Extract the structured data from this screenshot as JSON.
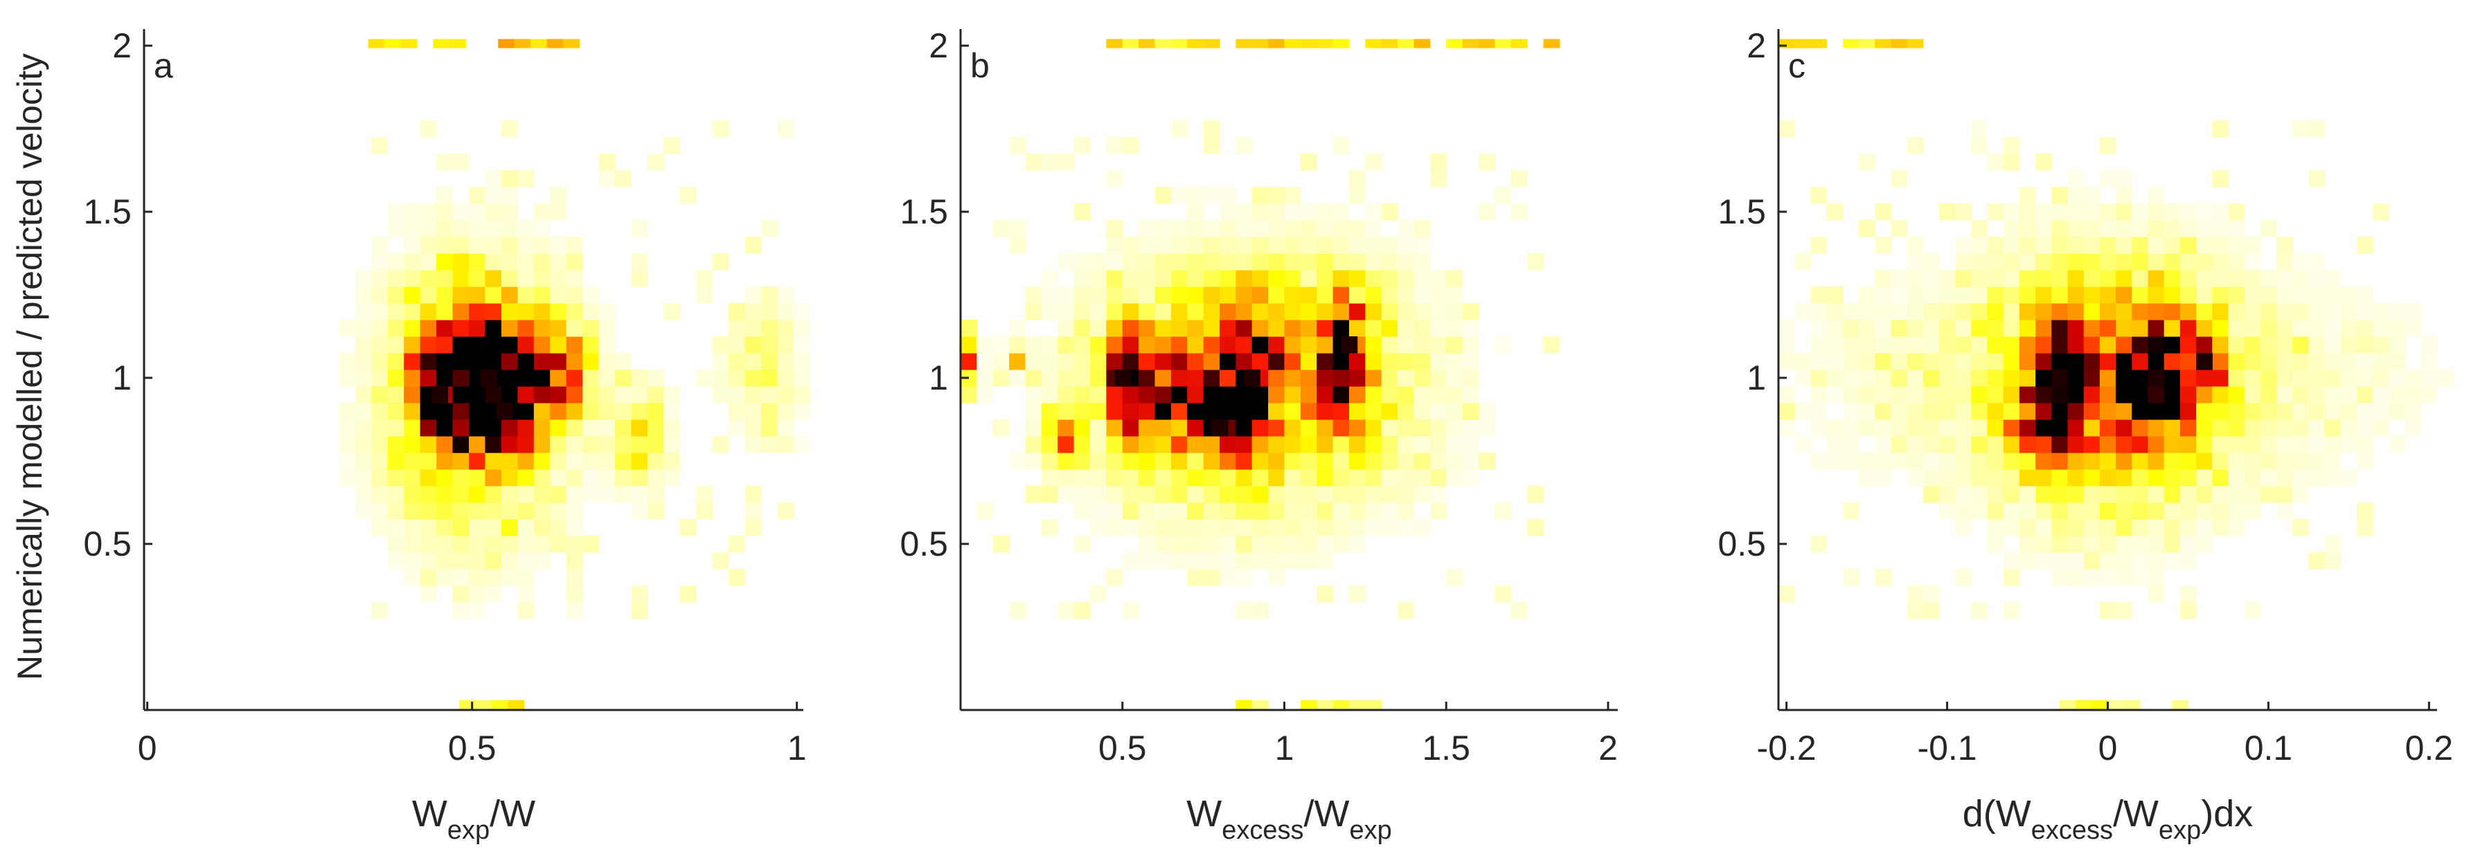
{
  "figure": {
    "ylabel": "Numerically modelled / predicted velocity",
    "colormap": [
      "#ffffff",
      "#ffff9c",
      "#ffff00",
      "#ffc000",
      "#ff8000",
      "#ff2000",
      "#cc0000",
      "#800000",
      "#000000"
    ]
  },
  "chart_data": [
    {
      "type": "heatmap",
      "letter": "a",
      "xlabel": "W",
      "xlabel_sub": "exp",
      "xlabel_suffix": "/W",
      "xlim": [
        -0.005,
        1.01
      ],
      "ylim": [
        0,
        2.05
      ],
      "xticks": [
        0,
        0.5,
        1
      ],
      "xtick_labels": [
        "0",
        "0.5",
        "1"
      ],
      "yticks": [
        0.5,
        1,
        1.5,
        2
      ],
      "ytick_labels": [
        "0.5",
        "1",
        "1.5",
        "2"
      ],
      "bin_width": [
        0.025,
        0.05
      ],
      "blobs": [
        {
          "x": 0.46,
          "y": 0.96,
          "sx": 0.035,
          "sy": 0.12,
          "a": 1.0
        },
        {
          "x": 0.52,
          "y": 1.02,
          "sx": 0.03,
          "sy": 0.13,
          "a": 0.95
        },
        {
          "x": 0.56,
          "y": 0.9,
          "sx": 0.03,
          "sy": 0.08,
          "a": 0.7
        },
        {
          "x": 0.62,
          "y": 1.02,
          "sx": 0.04,
          "sy": 0.1,
          "a": 0.6
        },
        {
          "x": 0.5,
          "y": 0.95,
          "sx": 0.09,
          "sy": 0.28,
          "a": 0.35
        },
        {
          "x": 0.76,
          "y": 0.82,
          "sx": 0.03,
          "sy": 0.1,
          "a": 0.25
        },
        {
          "x": 0.95,
          "y": 1.02,
          "sx": 0.04,
          "sy": 0.15,
          "a": 0.15
        }
      ],
      "edge_bands": [
        {
          "y": 2.0,
          "x0": 0.34,
          "x1": 0.66,
          "a": 0.35
        },
        {
          "y": 0.0,
          "x0": 0.43,
          "x1": 0.57,
          "a": 0.25
        }
      ],
      "noise_extent": [
        0.34,
        1.0
      ],
      "peaks": [
        {
          "x": 0.45,
          "y": 0.95
        },
        {
          "x": 0.525,
          "y": 1.0
        },
        {
          "x": 0.55,
          "y": 0.9
        }
      ]
    },
    {
      "type": "heatmap",
      "letter": "b",
      "xlabel": "W",
      "xlabel_sub": "excess",
      "xlabel_suffix": "/W",
      "xlabel_sub2": "exp",
      "xlim": [
        0,
        2.03
      ],
      "ylim": [
        0,
        2.05
      ],
      "xticks": [
        0.5,
        1,
        1.5,
        2
      ],
      "xtick_labels": [
        "0.5",
        "1",
        "1.5",
        "2"
      ],
      "yticks": [
        0.5,
        1,
        1.5,
        2
      ],
      "ytick_labels": [
        "0.5",
        "1",
        "1.5",
        "2"
      ],
      "bin_width": [
        0.05,
        0.05
      ],
      "blobs": [
        {
          "x": 0.52,
          "y": 1.0,
          "sx": 0.04,
          "sy": 0.1,
          "a": 0.9
        },
        {
          "x": 0.9,
          "y": 1.0,
          "sx": 0.05,
          "sy": 0.13,
          "a": 0.95
        },
        {
          "x": 0.8,
          "y": 0.9,
          "sx": 0.05,
          "sy": 0.08,
          "a": 0.7
        },
        {
          "x": 1.18,
          "y": 1.05,
          "sx": 0.06,
          "sy": 0.13,
          "a": 0.75
        },
        {
          "x": 0.65,
          "y": 0.95,
          "sx": 0.07,
          "sy": 0.1,
          "a": 0.55
        },
        {
          "x": 0.32,
          "y": 0.83,
          "sx": 0.04,
          "sy": 0.06,
          "a": 0.45
        },
        {
          "x": 0.9,
          "y": 0.98,
          "sx": 0.32,
          "sy": 0.25,
          "a": 0.38
        },
        {
          "x": 0.16,
          "y": 1.05,
          "sx": 0.015,
          "sy": 0.02,
          "a": 0.55
        },
        {
          "x": 0.03,
          "y": 1.05,
          "sx": 0.02,
          "sy": 0.06,
          "a": 0.45
        }
      ],
      "edge_bands": [
        {
          "y": 2.0,
          "x0": 0.45,
          "x1": 1.85,
          "a": 0.3
        },
        {
          "y": 0.0,
          "x0": 0.85,
          "x1": 1.3,
          "a": 0.2
        }
      ],
      "noise_extent": [
        0.0,
        1.85
      ],
      "peaks": [
        {
          "x": 0.5,
          "y": 1.0
        },
        {
          "x": 0.8,
          "y": 0.85
        },
        {
          "x": 0.9,
          "y": 1.0
        },
        {
          "x": 1.2,
          "y": 1.1
        }
      ]
    },
    {
      "type": "heatmap",
      "letter": "c",
      "xlabel": "d(W",
      "xlabel_sub": "excess",
      "xlabel_suffix": "/W",
      "xlabel_sub2": "exp",
      "xlabel_tail": ")dx",
      "xlim": [
        -0.205,
        0.205
      ],
      "ylim": [
        0,
        2.05
      ],
      "xticks": [
        -0.2,
        -0.1,
        0,
        0.1,
        0.2
      ],
      "xtick_labels": [
        "-0.2",
        "-0.1",
        "0",
        "0.1",
        "0.2"
      ],
      "yticks": [
        0.5,
        1,
        1.5,
        2
      ],
      "ytick_labels": [
        "0.5",
        "1",
        "1.5",
        "2"
      ],
      "bin_width": [
        0.01,
        0.05
      ],
      "blobs": [
        {
          "x": -0.03,
          "y": 1.0,
          "sx": 0.012,
          "sy": 0.1,
          "a": 0.95
        },
        {
          "x": 0.03,
          "y": 1.0,
          "sx": 0.015,
          "sy": 0.1,
          "a": 0.95
        },
        {
          "x": 0.06,
          "y": 1.05,
          "sx": 0.008,
          "sy": 0.06,
          "a": 0.7
        },
        {
          "x": -0.04,
          "y": 0.85,
          "sx": 0.012,
          "sy": 0.06,
          "a": 0.6
        },
        {
          "x": 0.0,
          "y": 0.98,
          "sx": 0.045,
          "sy": 0.25,
          "a": 0.4
        },
        {
          "x": 0.0,
          "y": 1.0,
          "sx": 0.12,
          "sy": 0.22,
          "a": 0.12
        }
      ],
      "edge_bands": [
        {
          "y": 2.0,
          "x0": -0.205,
          "x1": -0.12,
          "a": 0.3
        },
        {
          "y": 0.0,
          "x0": -0.03,
          "x1": 0.06,
          "a": 0.2
        }
      ],
      "noise_extent": [
        -0.205,
        0.17
      ],
      "peaks": [
        {
          "x": -0.03,
          "y": 1.0
        },
        {
          "x": 0.03,
          "y": 1.0
        },
        {
          "x": 0.06,
          "y": 1.05
        }
      ]
    }
  ]
}
